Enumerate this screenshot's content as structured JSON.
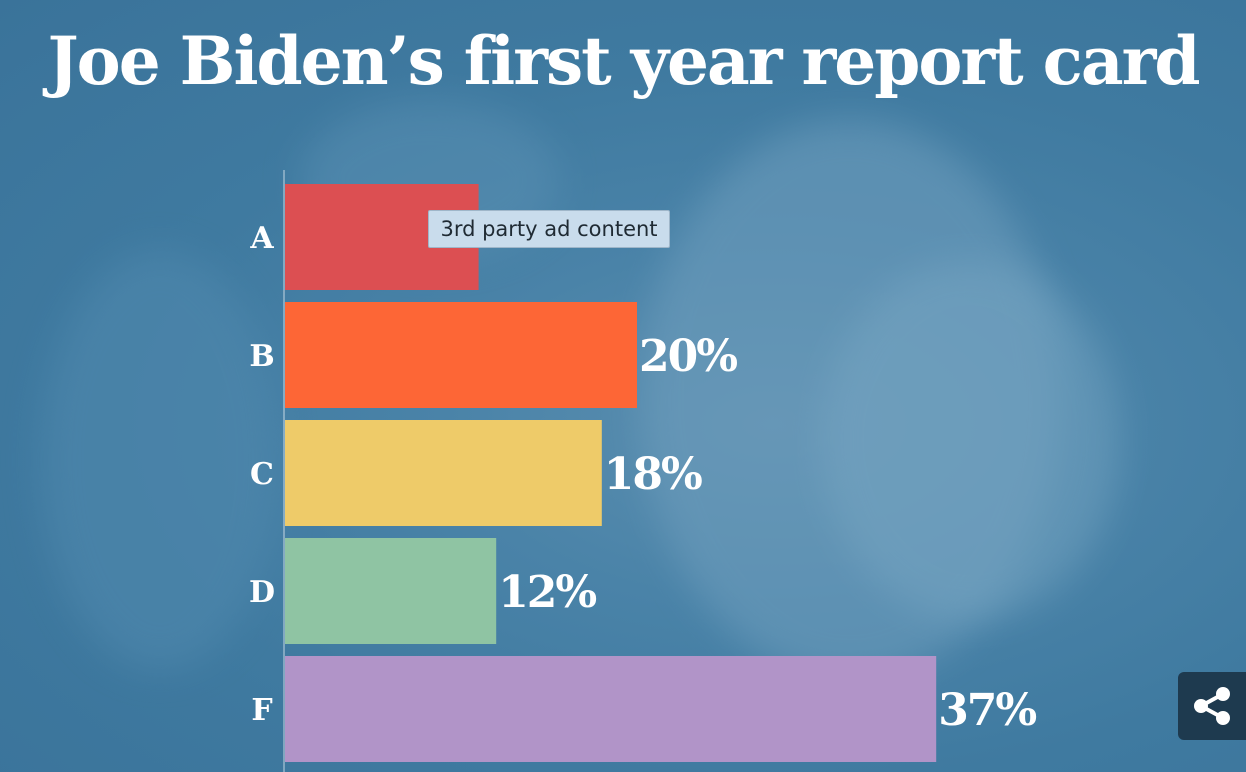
{
  "colors": {
    "background": "#3f7aa0",
    "bar_A": "#dc4f52",
    "bar_B": "#fd6636",
    "bar_C": "#eecb69",
    "bar_D": "#8fc4a3",
    "bar_F": "#b194c8",
    "text": "#ffffff"
  },
  "ad_tooltip": {
    "label": "3rd party ad content"
  },
  "share": {
    "icon": "share-icon"
  },
  "chart_data": {
    "type": "bar",
    "orientation": "horizontal",
    "title": "Joe Biden’s first year report card",
    "categories": [
      "A",
      "B",
      "C",
      "D",
      "F"
    ],
    "values": [
      11,
      20,
      18,
      12,
      37
    ],
    "labels": [
      "",
      "20%",
      "18%",
      "12%",
      "37%"
    ],
    "unit": "%",
    "xlim": [
      0,
      40
    ],
    "grid": false,
    "legend": "none"
  }
}
